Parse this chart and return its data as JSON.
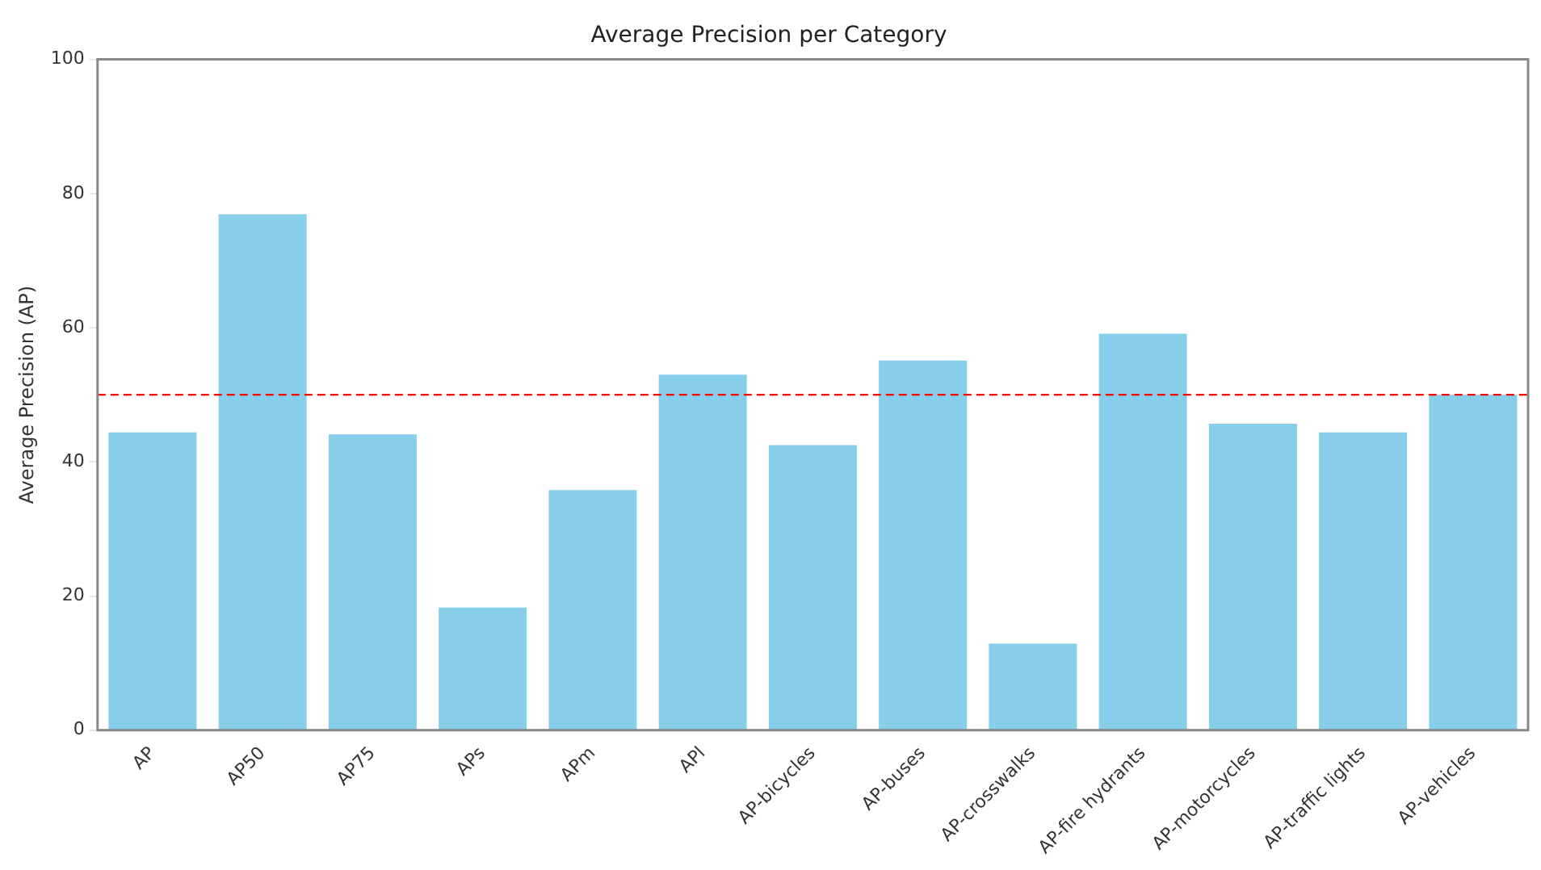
{
  "chart_data": {
    "type": "bar",
    "title": "Average Precision per Category",
    "ylabel": "Average Precision (AP)",
    "categories": [
      "AP",
      "AP50",
      "AP75",
      "APs",
      "APm",
      "APl",
      "AP-bicycles",
      "AP-buses",
      "AP-crosswalks",
      "AP-fire hydrants",
      "AP-motorcycles",
      "AP-traffic lights",
      "AP-vehicles"
    ],
    "values": [
      44.4,
      76.9,
      44.1,
      18.3,
      35.8,
      53.0,
      42.5,
      55.1,
      12.9,
      59.1,
      45.7,
      44.4,
      50.0
    ],
    "color": "#87ceeb",
    "ylim": [
      0,
      100
    ],
    "yticks": [
      0,
      20,
      40,
      60,
      80,
      100
    ],
    "grid": false,
    "legend": false,
    "ref_lines": [
      {
        "axis": "y",
        "value": 50,
        "color": "#ff0000",
        "line_style": "dashed"
      }
    ]
  }
}
